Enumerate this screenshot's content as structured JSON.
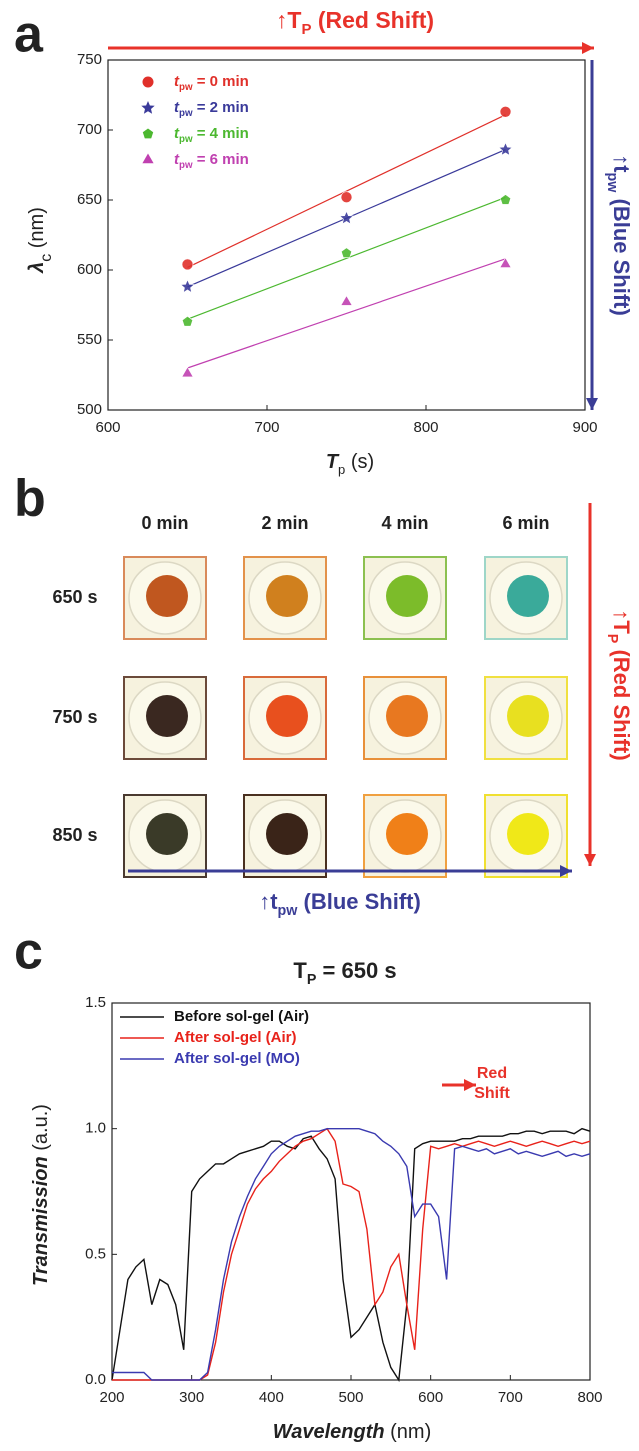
{
  "panel_labels": [
    "a",
    "b",
    "c"
  ],
  "chart_data": [
    {
      "type": "scatter",
      "x_label": {
        "main": "T",
        "sub": "p",
        "rest": " (s)"
      },
      "y_label": {
        "main": "λ",
        "sub": "c",
        "rest": " (nm)"
      },
      "annotations": [
        {
          "main": "↑T",
          "sub": "P",
          "rest": " (Red Shift)",
          "color": "#e8322a"
        },
        {
          "main": "↑t",
          "sub": "pw",
          "rest": " (Blue Shift)",
          "color": "#3a3d96"
        }
      ],
      "x": [
        650,
        750,
        850
      ],
      "series": [
        {
          "label": {
            "main": "t",
            "sub": "pw",
            "rest": " = 0 min"
          },
          "color": "#e0302a",
          "marker": "circle",
          "values": [
            604,
            652,
            713
          ]
        },
        {
          "label": {
            "main": "t",
            "sub": "pw",
            "rest": " = 2 min"
          },
          "color": "#3a3a9a",
          "marker": "star",
          "values": [
            588,
            637,
            686
          ]
        },
        {
          "label": {
            "main": "t",
            "sub": "pw",
            "rest": " = 4 min"
          },
          "color": "#4cb830",
          "marker": "pentagon",
          "values": [
            563,
            612,
            650
          ]
        },
        {
          "label": {
            "main": "t",
            "sub": "pw",
            "rest": " = 6 min"
          },
          "color": "#c040b0",
          "marker": "triangle",
          "values": [
            526,
            577,
            604
          ]
        }
      ],
      "xlim": [
        600,
        900
      ],
      "xticks": [
        600,
        700,
        800,
        900
      ],
      "ylim": [
        500,
        750
      ],
      "yticks": [
        500,
        550,
        600,
        650,
        700,
        750
      ],
      "fit_lines": true
    },
    {
      "type": "line",
      "title": {
        "main": "T",
        "sub": "P",
        "rest": " = 650 s"
      },
      "x_label": {
        "main": "Wavelength",
        "rest": " (nm)"
      },
      "y_label": {
        "main": "Transmission",
        "rest": " (a.u.)"
      },
      "annotations": [
        {
          "main": "Red",
          "rest": "Shift",
          "color": "#e8322a"
        }
      ],
      "x": [
        200,
        210,
        220,
        230,
        240,
        250,
        260,
        270,
        280,
        290,
        300,
        310,
        320,
        330,
        340,
        350,
        360,
        370,
        380,
        390,
        400,
        410,
        420,
        430,
        440,
        450,
        460,
        470,
        480,
        490,
        500,
        510,
        520,
        530,
        540,
        550,
        560,
        570,
        580,
        590,
        600,
        610,
        620,
        630,
        640,
        650,
        660,
        670,
        680,
        690,
        700,
        710,
        720,
        730,
        740,
        750,
        760,
        770,
        780,
        790,
        800
      ],
      "series": [
        {
          "name": "Before sol-gel (Air)",
          "color": "#111111",
          "values": [
            0.0,
            0.2,
            0.4,
            0.45,
            0.48,
            0.3,
            0.4,
            0.38,
            0.3,
            0.12,
            0.75,
            0.8,
            0.83,
            0.86,
            0.86,
            0.88,
            0.9,
            0.91,
            0.92,
            0.93,
            0.95,
            0.95,
            0.93,
            0.92,
            0.96,
            0.97,
            0.92,
            0.88,
            0.8,
            0.4,
            0.17,
            0.2,
            0.25,
            0.3,
            0.15,
            0.05,
            0.0,
            0.3,
            0.92,
            0.94,
            0.95,
            0.95,
            0.95,
            0.95,
            0.96,
            0.96,
            0.97,
            0.97,
            0.97,
            0.97,
            0.98,
            0.98,
            0.99,
            0.99,
            0.98,
            0.99,
            0.99,
            0.99,
            0.98,
            1.0,
            0.99
          ]
        },
        {
          "name": "After sol-gel (Air)",
          "color": "#e8221a",
          "values": [
            0.0,
            0.0,
            0.0,
            0.0,
            0.0,
            0.0,
            0.0,
            0.0,
            0.0,
            0.0,
            0.0,
            0.0,
            0.02,
            0.15,
            0.35,
            0.5,
            0.6,
            0.7,
            0.76,
            0.8,
            0.83,
            0.87,
            0.9,
            0.93,
            0.95,
            0.96,
            0.98,
            1.0,
            0.95,
            0.78,
            0.77,
            0.75,
            0.6,
            0.3,
            0.35,
            0.45,
            0.5,
            0.3,
            0.12,
            0.6,
            0.93,
            0.92,
            0.93,
            0.94,
            0.93,
            0.94,
            0.95,
            0.94,
            0.93,
            0.94,
            0.95,
            0.94,
            0.93,
            0.94,
            0.95,
            0.94,
            0.93,
            0.94,
            0.95,
            0.94,
            0.95
          ]
        },
        {
          "name": "After sol-gel (MO)",
          "color": "#3a3ab0",
          "values": [
            0.03,
            0.03,
            0.03,
            0.03,
            0.03,
            0.0,
            0.0,
            0.0,
            0.0,
            0.0,
            0.0,
            0.0,
            0.03,
            0.2,
            0.4,
            0.55,
            0.65,
            0.73,
            0.8,
            0.85,
            0.9,
            0.93,
            0.95,
            0.97,
            0.98,
            0.99,
            0.99,
            1.0,
            1.0,
            1.0,
            1.0,
            1.0,
            0.99,
            0.98,
            0.95,
            0.93,
            0.9,
            0.85,
            0.65,
            0.7,
            0.7,
            0.65,
            0.4,
            0.92,
            0.93,
            0.92,
            0.91,
            0.92,
            0.9,
            0.91,
            0.92,
            0.9,
            0.91,
            0.9,
            0.89,
            0.9,
            0.91,
            0.89,
            0.9,
            0.89,
            0.9
          ]
        }
      ],
      "xlim": [
        200,
        800
      ],
      "xticks": [
        200,
        300,
        400,
        500,
        600,
        700,
        800
      ],
      "ylim": [
        0,
        1.5
      ],
      "yticks": [
        {
          "value": 0,
          "label": "0.0"
        },
        0.5,
        {
          "value": 1,
          "label": "1.0"
        },
        1.5
      ]
    }
  ],
  "photo_grid": {
    "columns": [
      "0 min",
      "2 min",
      "4 min",
      "6 min"
    ],
    "rows": [
      "650 s",
      "750 s",
      "850 s"
    ],
    "cells": [
      [
        {
          "frame": "#d98a5a",
          "spot": "#c0571f"
        },
        {
          "frame": "#e3924a",
          "spot": "#d0801e"
        },
        {
          "frame": "#8cc050",
          "spot": "#7cbc2a"
        },
        {
          "frame": "#9ed6c8",
          "spot": "#3aaa9a"
        }
      ],
      [
        {
          "frame": "#6b4a3a",
          "spot": "#3a2820"
        },
        {
          "frame": "#d96a3a",
          "spot": "#e8501e"
        },
        {
          "frame": "#e8903a",
          "spot": "#e87820"
        },
        {
          "frame": "#f0e040",
          "spot": "#e8e020"
        }
      ],
      [
        {
          "frame": "#4a3a30",
          "spot": "#3a3a28"
        },
        {
          "frame": "#4a3020",
          "spot": "#3a2418"
        },
        {
          "frame": "#f0a040",
          "spot": "#f08018"
        },
        {
          "frame": "#f0e030",
          "spot": "#f0e818"
        }
      ]
    ],
    "annotations": [
      {
        "main": "↑T",
        "sub": "P",
        "rest": " (Red Shift)",
        "color": "#e8322a"
      },
      {
        "main": "↑t",
        "sub": "pw",
        "rest": " (Blue Shift)",
        "color": "#3a3d96"
      }
    ]
  }
}
